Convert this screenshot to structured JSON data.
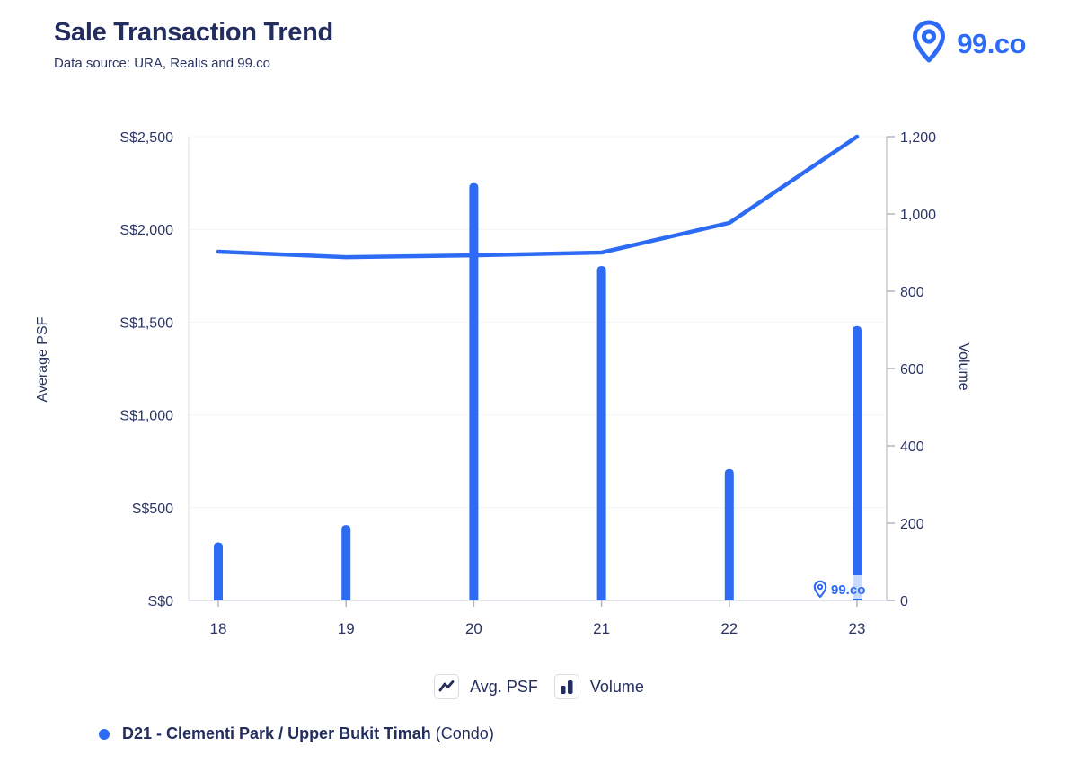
{
  "header": {
    "title": "Sale Transaction Trend",
    "subtitle": "Data source: URA, Realis and 99.co",
    "brand": "99.co"
  },
  "colors": {
    "accent_blue": "#2d6bf4",
    "navy_text": "#232d5e",
    "axis_text": "#2b3565",
    "grid_line": "#f3f4f6",
    "left_axis_line": "#e9eaee",
    "right_axis_line": "#c9ccd4",
    "bottom_axis_line": "#dadce2",
    "tick_mark": "#b3b7c1"
  },
  "chart_data": {
    "type": "combo (line + bar)",
    "categories": [
      "18",
      "19",
      "20",
      "21",
      "22",
      "23"
    ],
    "series": [
      {
        "name": "Avg. PSF",
        "type": "line",
        "axis": "left",
        "values": [
          1880,
          1850,
          1860,
          1875,
          2035,
          2500
        ]
      },
      {
        "name": "Volume",
        "type": "bar",
        "axis": "right",
        "values": [
          150,
          195,
          1080,
          865,
          340,
          710
        ]
      }
    ],
    "left_axis": {
      "label": "Average PSF",
      "min": 0,
      "max": 2500,
      "tick_step": 500,
      "ticks": [
        "S$0",
        "S$500",
        "S$1,000",
        "S$1,500",
        "S$2,000",
        "S$2,500"
      ]
    },
    "right_axis": {
      "label": "Volume",
      "min": 0,
      "max": 1200,
      "tick_step": 200,
      "ticks": [
        "0",
        "200",
        "400",
        "600",
        "800",
        "1,000",
        "1,200"
      ]
    },
    "legend": [
      {
        "label": "Avg. PSF"
      },
      {
        "label": "Volume"
      }
    ],
    "grid": "horizontal only",
    "legend_position": "bottom center",
    "watermark": "99.co"
  },
  "footer": {
    "series_label_bold": "D21 - Clementi Park / Upper Bukit Timah",
    "series_label_suffix": "(Condo)"
  }
}
